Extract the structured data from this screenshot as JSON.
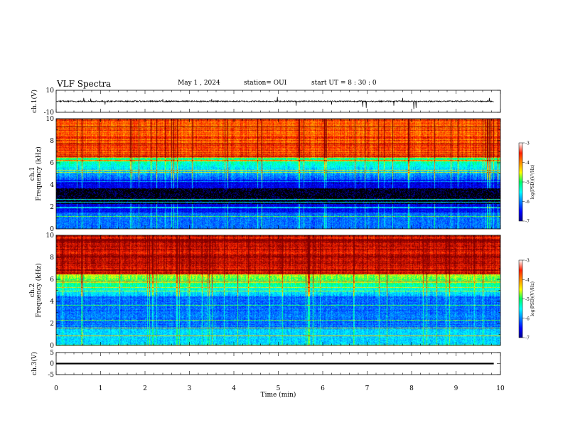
{
  "header": {
    "title": "VLF Spectra",
    "date": "May 1 , 2024",
    "station": "station= OUI",
    "start": "start UT = 8 : 30 : 0"
  },
  "colors": {
    "axis": "#000000",
    "trace": "#000000",
    "background": "#ffffff"
  },
  "chart_data": [
    {
      "type": "line",
      "panel": "ch1-waveform",
      "ylabel": "ch.1(V)",
      "ylim": [
        -10,
        10
      ],
      "yticks": [
        "10",
        "-10"
      ],
      "xlim": [
        0,
        10
      ],
      "baseline": 0,
      "noise_amplitude": 1.2,
      "spikes": [
        {
          "x": 0.62,
          "y": 3
        },
        {
          "x": 0.78,
          "y": 2.5
        },
        {
          "x": 1.1,
          "y": -3
        },
        {
          "x": 2.4,
          "y": 2
        },
        {
          "x": 3.5,
          "y": 2
        },
        {
          "x": 4.98,
          "y": 4
        },
        {
          "x": 5.4,
          "y": -4
        },
        {
          "x": 6.2,
          "y": -3
        },
        {
          "x": 6.9,
          "y": -5
        },
        {
          "x": 6.98,
          "y": -6
        },
        {
          "x": 7.6,
          "y": -4
        },
        {
          "x": 7.8,
          "y": 3
        },
        {
          "x": 8.05,
          "y": -7
        },
        {
          "x": 8.1,
          "y": -6
        },
        {
          "x": 9.75,
          "y": 3
        }
      ]
    },
    {
      "type": "heatmap",
      "panel": "ch1-spectrogram",
      "ylabel": "ch.1 Frequency (kHz)",
      "ylim": [
        0,
        10
      ],
      "yticks": [
        "0",
        "2",
        "4",
        "6",
        "8",
        "10"
      ],
      "xlim": [
        0,
        10
      ],
      "colorbar": {
        "label": "log(PSD)(V²/Hz)",
        "range": [
          -7,
          -3
        ],
        "ticks": [
          "-3",
          "-4",
          "-5",
          "-6",
          "-7"
        ]
      },
      "profile": {
        "high_band_level": -3.9,
        "mid_band_level": -6.4,
        "low_band_level": -6.8
      }
    },
    {
      "type": "heatmap",
      "panel": "ch2-spectrogram",
      "ylabel": "ch.2 Frequency (kHz)",
      "ylim": [
        0,
        10
      ],
      "yticks": [
        "0",
        "2",
        "4",
        "6",
        "8",
        "10"
      ],
      "xlim": [
        0,
        10
      ],
      "colorbar": {
        "label": "log(PSD)(V²/Hz)",
        "range": [
          -7,
          -3
        ],
        "ticks": [
          "-3",
          "-4",
          "-5",
          "-6",
          "-7"
        ]
      },
      "profile": {
        "high_band_level": -3.5,
        "mid_band_level": -6.0,
        "low_band_level": -6.3
      }
    },
    {
      "type": "line",
      "panel": "ch3-waveform",
      "ylabel": "ch.3(V)",
      "ylim": [
        -5,
        5
      ],
      "yticks": [
        "5",
        "0",
        "-5"
      ],
      "xlim": [
        0,
        10
      ],
      "baseline": 0,
      "trace_thickness": 0.7
    }
  ],
  "xaxis": {
    "label": "Time (min)",
    "ticks": [
      "0",
      "1",
      "2",
      "3",
      "4",
      "5",
      "6",
      "7",
      "8",
      "9",
      "10"
    ]
  }
}
